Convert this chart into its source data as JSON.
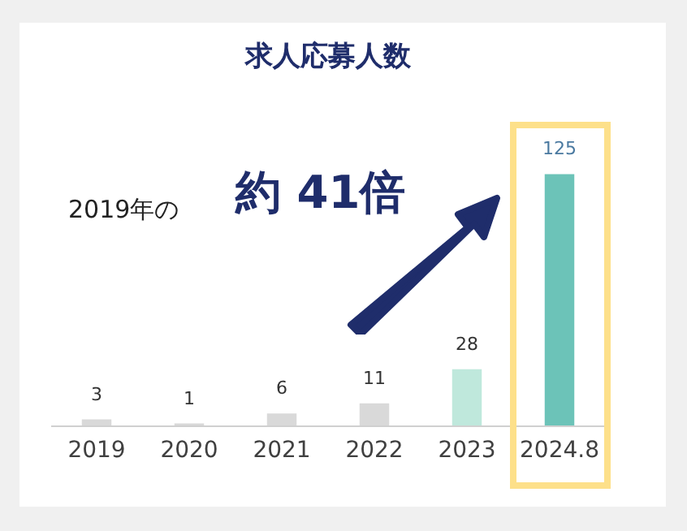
{
  "chart_data": {
    "type": "bar",
    "title": "求人応募人数",
    "categories": [
      "2019",
      "2020",
      "2021",
      "2022",
      "2023",
      "2024.8"
    ],
    "values": [
      3,
      1,
      6,
      11,
      28,
      125
    ],
    "colors": [
      "#d9d9d9",
      "#d9d9d9",
      "#d9d9d9",
      "#d9d9d9",
      "#bfe8dc",
      "#6cc3b8"
    ],
    "data_labels": true,
    "annotations": [
      "2019年の",
      "約 41倍"
    ]
  }
}
